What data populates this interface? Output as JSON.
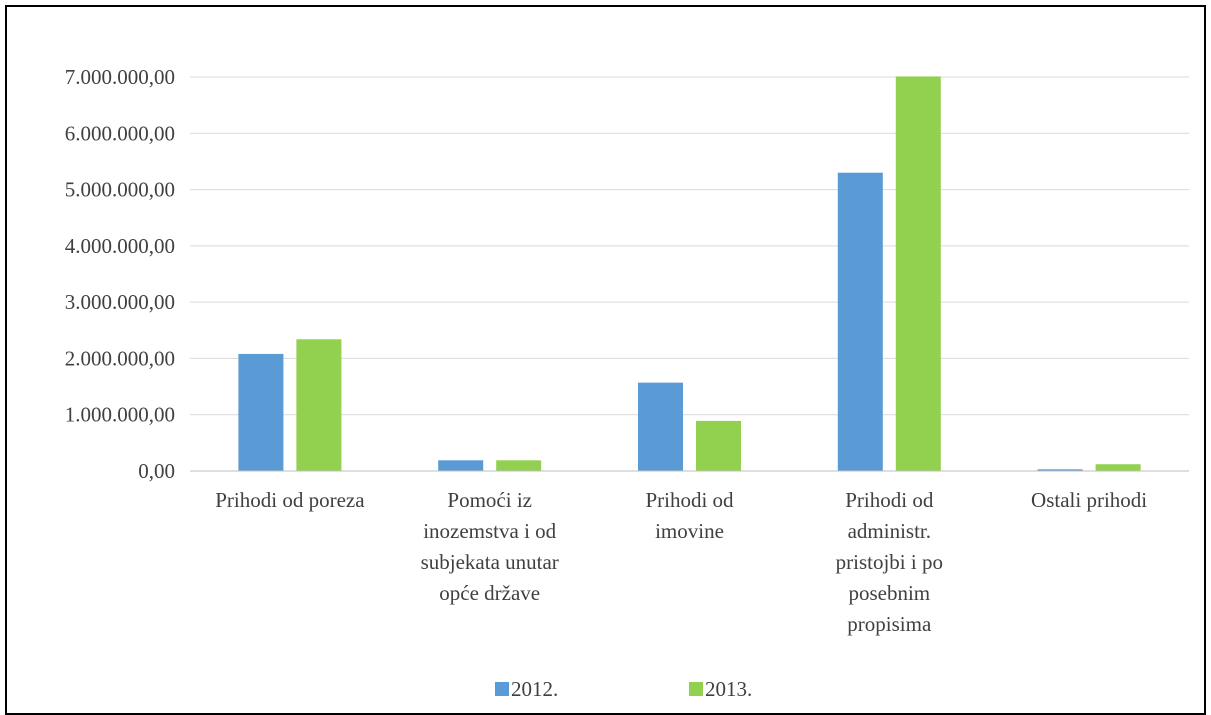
{
  "chart_data": {
    "type": "bar",
    "categories": [
      [
        "Prihodi od poreza"
      ],
      [
        "Pomoći iz",
        "inozemstva i od",
        "subjekata unutar",
        "opće države"
      ],
      [
        "Prihodi od",
        "imovine"
      ],
      [
        "Prihodi od",
        "administr.",
        "pristojbi i po",
        "posebnim",
        "propisima"
      ],
      [
        "Ostali prihodi"
      ]
    ],
    "series": [
      {
        "name": "2012.",
        "color": "#5b9bd5",
        "values": [
          2080000,
          190000,
          1570000,
          5300000,
          30000
        ]
      },
      {
        "name": "2013.",
        "color": "#92d050",
        "values": [
          2340000,
          190000,
          890000,
          7010000,
          120000
        ]
      }
    ],
    "ylim": [
      0,
      7000000
    ],
    "yticks": [
      0,
      1000000,
      2000000,
      3000000,
      4000000,
      5000000,
      6000000,
      7000000
    ],
    "ytick_labels": [
      "0,00",
      "1.000.000,00",
      "2.000.000,00",
      "3.000.000,00",
      "4.000.000,00",
      "5.000.000,00",
      "6.000.000,00",
      "7.000.000,00"
    ],
    "grid": true,
    "legend": "bottom",
    "gridline_color": "#d9d9d9",
    "axis_color": "#bfbfbf"
  }
}
